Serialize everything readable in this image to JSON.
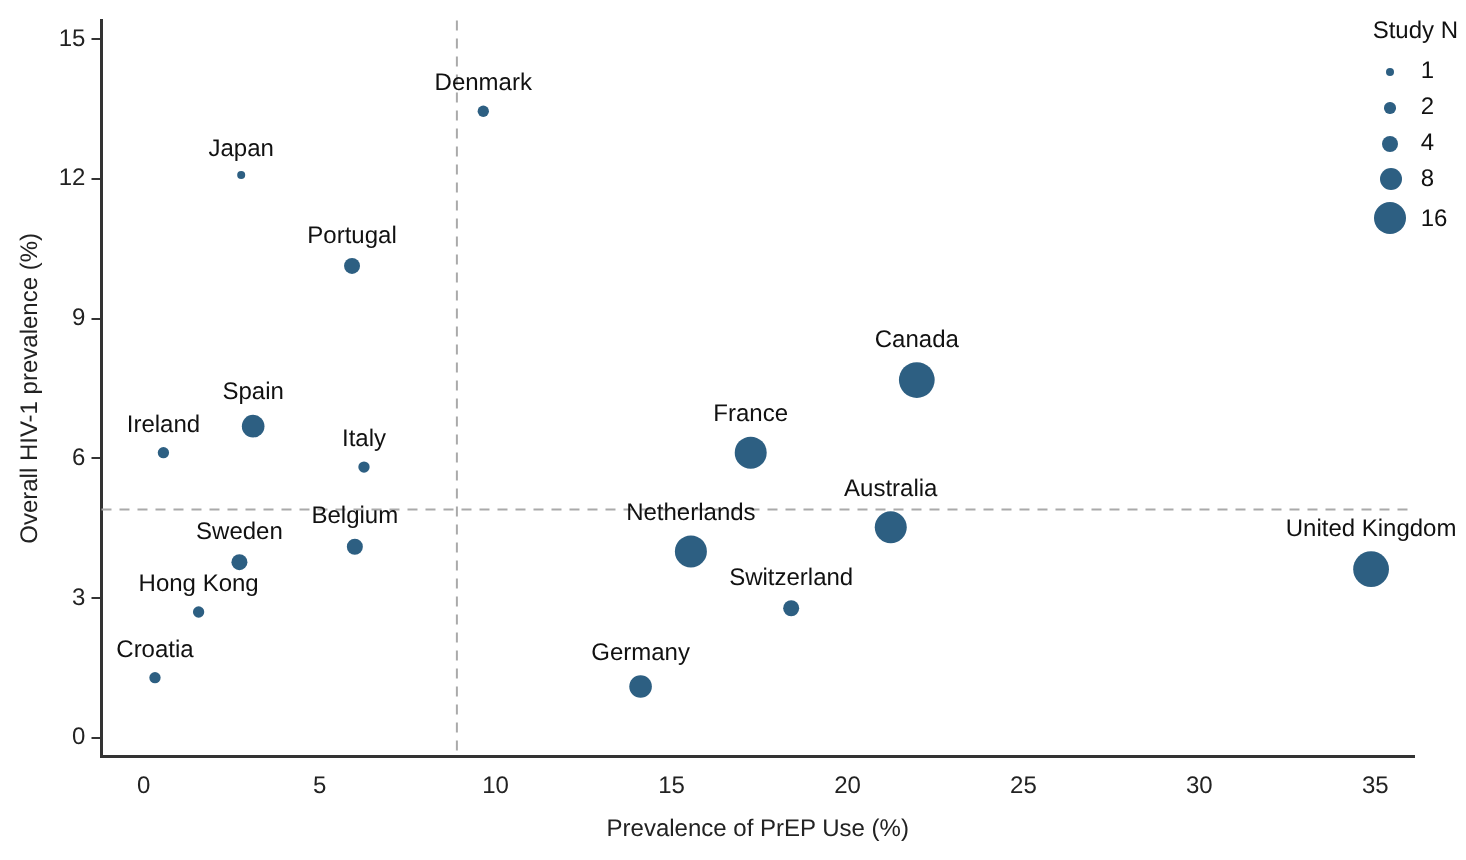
{
  "chart_data": {
    "type": "bubble",
    "xlabel": "Prevalence of PrEP Use (%)",
    "ylabel": "Overall HIV-1 prevalence (%)",
    "legend_title": "Study N",
    "grid": false,
    "xlim": [
      -1.2,
      36.1
    ],
    "xticks": [
      0,
      5,
      10,
      15,
      20,
      25,
      30,
      35
    ],
    "ylim": [
      -0.4,
      15.4
    ],
    "yticks": [
      0,
      3,
      6,
      9,
      12,
      15
    ],
    "size_legend": [
      1,
      2,
      4,
      8,
      16
    ],
    "series": [
      {
        "color": "#2d5f82",
        "x": [
          9.65,
          2.77,
          5.92,
          3.11,
          0.56,
          6.26,
          6.0,
          2.72,
          1.56,
          0.32,
          14.12,
          15.55,
          17.25,
          21.97,
          21.23,
          18.4,
          34.88
        ],
        "values": [
          13.45,
          12.08,
          10.13,
          6.69,
          6.12,
          5.81,
          4.1,
          3.77,
          2.7,
          1.29,
          1.1,
          4.0,
          6.12,
          7.68,
          4.52,
          2.78,
          3.62
        ],
        "sizes": [
          2,
          1,
          4,
          8,
          2,
          2,
          4,
          4,
          2,
          2,
          8,
          16,
          16,
          20,
          16,
          4,
          20
        ]
      }
    ],
    "ref_lines": [
      {
        "axis": "x",
        "value": 8.9,
        "color": "#aaaaaa",
        "line_style": "dashed"
      },
      {
        "axis": "y",
        "value": 4.9,
        "color": "#aaaaaa",
        "line_style": "dashed"
      }
    ],
    "annotations": [
      {
        "text": "Denmark",
        "x": 9.65,
        "y": 13.45
      },
      {
        "text": "Japan",
        "x": 2.77,
        "y": 12.08
      },
      {
        "text": "Portugal",
        "x": 5.92,
        "y": 10.13
      },
      {
        "text": "Spain",
        "x": 3.11,
        "y": 6.69
      },
      {
        "text": "Ireland",
        "x": 0.56,
        "y": 6.12
      },
      {
        "text": "Italy",
        "x": 6.26,
        "y": 5.81
      },
      {
        "text": "Belgium",
        "x": 6.0,
        "y": 4.1
      },
      {
        "text": "Sweden",
        "x": 2.72,
        "y": 3.77
      },
      {
        "text": "Hong Kong",
        "x": 1.56,
        "y": 2.7
      },
      {
        "text": "Croatia",
        "x": 0.32,
        "y": 1.29
      },
      {
        "text": "Germany",
        "x": 14.12,
        "y": 1.1
      },
      {
        "text": "Netherlands",
        "x": 15.55,
        "y": 4.0
      },
      {
        "text": "France",
        "x": 17.25,
        "y": 6.12
      },
      {
        "text": "Canada",
        "x": 21.97,
        "y": 7.68
      },
      {
        "text": "Australia",
        "x": 21.23,
        "y": 4.52
      },
      {
        "text": "Switzerland",
        "x": 18.4,
        "y": 2.78
      },
      {
        "text": "United Kingdom",
        "x": 34.88,
        "y": 3.62
      }
    ]
  }
}
